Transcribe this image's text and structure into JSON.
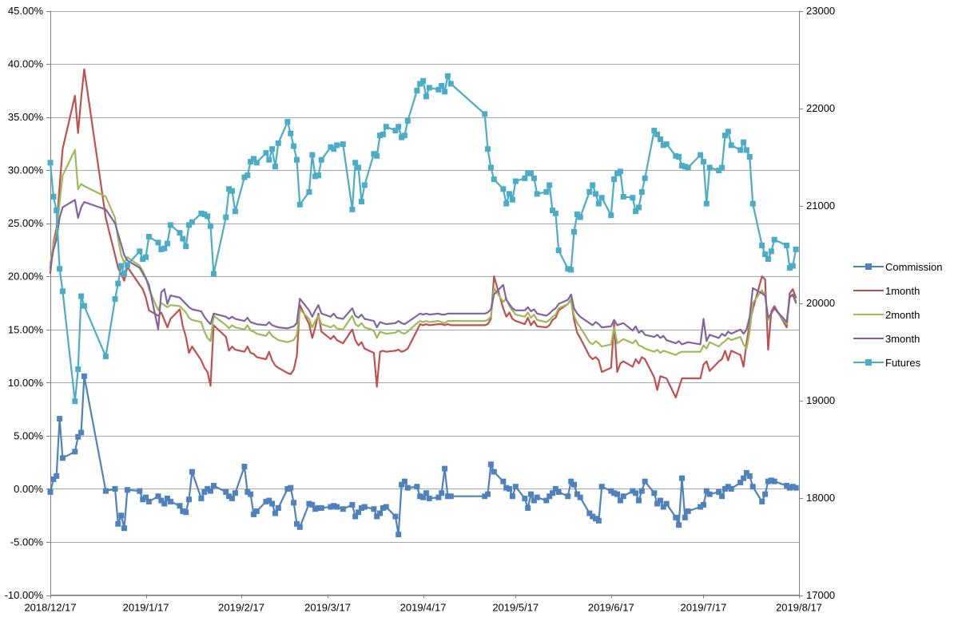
{
  "chart_data": {
    "type": "line",
    "title": "",
    "grid": "horizontal",
    "legend_position": "right",
    "background": "#ffffff",
    "gridline_color": "#a6a6a6",
    "axis_color": "#808080",
    "text_color": "#000000",
    "x_axis": {
      "kind": "date",
      "start_date": "2018/12/17",
      "span_days": 243,
      "tick_labels": [
        "2018/12/17",
        "2019/1/17",
        "2019/2/17",
        "2019/3/17",
        "2019/4/17",
        "2019/5/17",
        "2019/6/17",
        "2019/7/17",
        "2019/8/17"
      ],
      "tick_day_offsets": [
        0,
        31,
        62,
        90,
        121,
        151,
        182,
        212,
        243
      ]
    },
    "y_axis_left": {
      "min": -10,
      "max": 45,
      "step": 5,
      "format": "percent",
      "tick_labels": [
        "45.00%",
        "40.00%",
        "35.00%",
        "30.00%",
        "25.00%",
        "20.00%",
        "15.00%",
        "10.00%",
        "5.00%",
        "0.00%",
        "-5.00%",
        "-10.00%"
      ]
    },
    "y_axis_right": {
      "min": 17000,
      "max": 23000,
      "step": 1000,
      "tick_labels": [
        "23000",
        "22000",
        "21000",
        "20000",
        "19000",
        "18000",
        "17000"
      ]
    },
    "trading_day_offsets": [
      0,
      1,
      2,
      3,
      4,
      8,
      9,
      10,
      11,
      18,
      21,
      22,
      23,
      24,
      25,
      29,
      30,
      31,
      32,
      35,
      36,
      37,
      38,
      39,
      42,
      43,
      44,
      45,
      46,
      49,
      50,
      51,
      52,
      53,
      57,
      58,
      59,
      60,
      63,
      64,
      65,
      66,
      67,
      70,
      71,
      72,
      73,
      74,
      77,
      78,
      79,
      80,
      81,
      84,
      85,
      86,
      87,
      88,
      91,
      92,
      93,
      95,
      98,
      99,
      100,
      101,
      102,
      105,
      106,
      107,
      108,
      109,
      112,
      113,
      114,
      115,
      116,
      119,
      120,
      121,
      122,
      123,
      126,
      127,
      128,
      129,
      130,
      141,
      142,
      143,
      144,
      147,
      148,
      149,
      150,
      151,
      154,
      155,
      156,
      157,
      158,
      161,
      162,
      163,
      164,
      165,
      168,
      169,
      170,
      171,
      172,
      175,
      176,
      177,
      178,
      179,
      182,
      183,
      184,
      185,
      186,
      189,
      190,
      191,
      192,
      193,
      196,
      197,
      198,
      199,
      200,
      203,
      204,
      205,
      206,
      207,
      211,
      212,
      213,
      214,
      217,
      218,
      219,
      220,
      221,
      224,
      225,
      226,
      227,
      228,
      231,
      232,
      233,
      234,
      235,
      239,
      240,
      241,
      242
    ],
    "series": [
      {
        "name": "Commission",
        "axis": "left",
        "color": "#4f81bd",
        "marker": "square",
        "values": [
          -0.3,
          0.9,
          1.2,
          6.6,
          2.9,
          3.5,
          4.9,
          5.3,
          10.6,
          -0.2,
          0.0,
          -3.3,
          -2.5,
          -3.7,
          -0.1,
          -0.2,
          -1.0,
          -0.8,
          -1.2,
          -0.7,
          -1.1,
          -1.4,
          -0.9,
          -1.2,
          -1.6,
          -2.1,
          -2.2,
          -1.0,
          1.6,
          -0.9,
          -0.3,
          0.0,
          -0.2,
          0.3,
          -0.3,
          -0.7,
          -0.9,
          -0.4,
          2.1,
          -0.3,
          -0.5,
          -2.4,
          -2.1,
          -1.2,
          -1.1,
          -1.4,
          -2.3,
          -1.8,
          0.0,
          0.1,
          -1.3,
          -3.3,
          -3.6,
          -1.4,
          -1.5,
          -1.9,
          -1.8,
          -1.8,
          -1.7,
          -1.6,
          -1.7,
          -1.9,
          -1.5,
          -2.6,
          -2.2,
          -1.8,
          -1.7,
          -1.9,
          -2.6,
          -2.3,
          -1.8,
          -1.7,
          -2.6,
          -4.3,
          0.4,
          0.7,
          0.1,
          0.2,
          -0.7,
          -0.8,
          -0.4,
          -0.9,
          -0.8,
          -0.4,
          1.9,
          -0.7,
          -0.7,
          -0.7,
          -0.5,
          2.3,
          1.6,
          0.7,
          0.1,
          0.0,
          -0.7,
          0.2,
          -0.9,
          -1.8,
          -0.5,
          -1.1,
          -0.8,
          -1.1,
          -0.7,
          -0.4,
          0.0,
          -0.3,
          -0.7,
          0.7,
          0.4,
          -0.5,
          -0.8,
          -2.3,
          -2.6,
          -2.8,
          -3.0,
          0.2,
          -0.2,
          -0.4,
          -0.5,
          -1.1,
          -0.7,
          -0.2,
          -0.4,
          -1.1,
          -0.2,
          0.7,
          -0.4,
          -1.4,
          -1.1,
          -1.7,
          -1.4,
          -2.7,
          -3.4,
          1.0,
          -2.7,
          -2.1,
          -1.7,
          -1.5,
          -0.2,
          -0.5,
          -0.3,
          -0.7,
          0.0,
          0.2,
          0.0,
          0.6,
          1.0,
          1.5,
          1.2,
          0.2,
          -1.2,
          -0.5,
          0.7,
          0.8,
          0.7,
          0.3,
          0.1,
          0.2,
          0.1
        ]
      },
      {
        "name": "1month",
        "axis": "left",
        "color": "#c0504d",
        "marker": "none",
        "values": [
          20.3,
          23.2,
          24.5,
          28.5,
          32.0,
          37.0,
          33.5,
          36.8,
          39.5,
          25.5,
          22.0,
          20.8,
          20.2,
          19.6,
          20.9,
          19.2,
          18.8,
          18.0,
          16.8,
          16.3,
          16.6,
          15.9,
          15.2,
          16.0,
          16.9,
          15.3,
          14.3,
          12.8,
          13.4,
          12.1,
          11.4,
          11.0,
          9.7,
          15.4,
          14.3,
          13.0,
          13.4,
          13.1,
          12.9,
          13.4,
          12.8,
          12.7,
          12.4,
          12.2,
          12.9,
          12.1,
          11.6,
          11.4,
          10.9,
          10.8,
          11.2,
          12.5,
          17.3,
          15.5,
          14.2,
          15.2,
          16.5,
          14.8,
          14.1,
          14.4,
          14.0,
          13.7,
          15.0,
          14.0,
          13.5,
          13.8,
          13.2,
          12.8,
          9.6,
          12.9,
          13.0,
          12.9,
          13.0,
          13.1,
          12.9,
          13.0,
          13.2,
          14.9,
          15.5,
          15.4,
          15.5,
          15.4,
          15.5,
          15.5,
          15.4,
          15.5,
          15.4,
          15.4,
          15.5,
          16.0,
          20.0,
          17.0,
          16.2,
          16.6,
          16.0,
          15.8,
          15.5,
          16.1,
          15.4,
          15.8,
          15.3,
          15.2,
          15.4,
          15.9,
          16.1,
          16.8,
          17.4,
          17.8,
          15.9,
          14.7,
          14.2,
          12.5,
          12.2,
          12.4,
          12.1,
          11.0,
          11.4,
          15.6,
          11.0,
          11.8,
          12.0,
          11.5,
          12.2,
          11.8,
          12.4,
          12.2,
          10.5,
          9.3,
          10.6,
          10.5,
          10.4,
          8.6,
          9.5,
          10.4,
          10.4,
          10.4,
          10.4,
          11.7,
          12.0,
          11.1,
          12.0,
          12.2,
          13.0,
          12.1,
          13.0,
          12.6,
          11.5,
          13.8,
          15.5,
          16.9,
          20.0,
          19.7,
          13.1,
          16.7,
          17.2,
          15.2,
          18.4,
          18.8,
          18.0
        ]
      },
      {
        "name": "2month",
        "axis": "left",
        "color": "#9bbb59",
        "marker": "none",
        "values": [
          21.2,
          23.0,
          24.0,
          27.0,
          29.5,
          31.9,
          28.2,
          28.7,
          28.5,
          27.5,
          25.5,
          23.5,
          22.0,
          21.3,
          21.8,
          21.0,
          20.5,
          19.9,
          18.8,
          16.8,
          17.5,
          17.3,
          17.1,
          17.3,
          17.2,
          16.9,
          16.6,
          16.1,
          15.9,
          15.7,
          14.8,
          14.2,
          13.9,
          16.3,
          15.4,
          15.1,
          15.4,
          15.2,
          15.0,
          15.4,
          14.9,
          14.8,
          14.6,
          14.4,
          14.8,
          14.4,
          14.2,
          14.0,
          13.8,
          13.9,
          14.0,
          14.5,
          16.9,
          16.0,
          15.2,
          15.8,
          16.3,
          15.5,
          15.2,
          15.4,
          15.1,
          15.0,
          16.3,
          15.5,
          15.3,
          15.6,
          15.2,
          14.9,
          14.2,
          14.8,
          14.7,
          14.6,
          14.7,
          14.9,
          14.7,
          14.6,
          14.8,
          15.6,
          15.8,
          15.7,
          15.8,
          15.7,
          15.8,
          15.7,
          15.6,
          15.8,
          15.8,
          15.8,
          15.9,
          16.2,
          18.9,
          17.6,
          17.9,
          17.2,
          16.8,
          16.4,
          16.2,
          16.6,
          16.1,
          16.4,
          15.9,
          15.7,
          15.9,
          16.2,
          16.4,
          17.0,
          17.4,
          17.9,
          16.3,
          15.6,
          15.2,
          13.8,
          13.6,
          13.9,
          13.7,
          13.4,
          13.6,
          15.2,
          13.7,
          13.9,
          14.1,
          13.7,
          14.0,
          13.5,
          13.4,
          13.2,
          12.9,
          13.1,
          12.8,
          13.0,
          12.9,
          12.6,
          12.8,
          12.9,
          12.9,
          12.9,
          12.9,
          13.5,
          13.2,
          13.8,
          13.4,
          13.7,
          13.9,
          14.2,
          14.0,
          14.3,
          13.6,
          13.2,
          14.8,
          17.5,
          18.7,
          18.3,
          15.9,
          16.6,
          17.0,
          15.5,
          18.0,
          18.2,
          17.7
        ]
      },
      {
        "name": "3month",
        "axis": "left",
        "color": "#8064a2",
        "marker": "none",
        "values": [
          20.8,
          22.5,
          23.5,
          25.5,
          26.5,
          27.2,
          25.5,
          26.5,
          27.0,
          26.3,
          25.0,
          24.0,
          23.0,
          22.0,
          21.5,
          20.8,
          20.3,
          19.8,
          19.2,
          15.0,
          18.5,
          18.8,
          17.4,
          18.2,
          18.0,
          17.7,
          17.4,
          17.1,
          16.9,
          16.7,
          16.2,
          15.8,
          15.5,
          16.5,
          16.2,
          16.0,
          16.2,
          16.0,
          15.8,
          16.1,
          15.7,
          15.6,
          15.5,
          15.4,
          15.7,
          15.4,
          15.3,
          15.2,
          15.1,
          15.2,
          15.3,
          15.6,
          17.9,
          16.8,
          16.2,
          16.8,
          17.3,
          16.5,
          16.2,
          16.5,
          16.1,
          16.0,
          17.0,
          16.3,
          16.1,
          16.4,
          16.0,
          15.8,
          15.2,
          15.7,
          15.6,
          15.5,
          15.6,
          15.8,
          15.6,
          15.5,
          15.7,
          16.3,
          16.5,
          16.4,
          16.5,
          16.4,
          16.5,
          16.4,
          16.4,
          16.5,
          16.5,
          16.5,
          16.6,
          16.9,
          18.3,
          19.2,
          17.8,
          17.4,
          17.0,
          16.8,
          16.8,
          17.1,
          16.7,
          16.9,
          16.5,
          16.3,
          16.5,
          16.8,
          17.0,
          17.4,
          17.8,
          18.3,
          17.0,
          16.5,
          16.2,
          15.6,
          15.4,
          15.7,
          15.5,
          15.2,
          15.3,
          15.9,
          15.4,
          15.5,
          15.6,
          14.9,
          15.3,
          14.7,
          14.9,
          14.5,
          14.3,
          14.5,
          14.2,
          14.4,
          14.0,
          13.7,
          13.9,
          13.6,
          13.7,
          13.8,
          13.6,
          16.0,
          13.9,
          14.5,
          14.2,
          14.6,
          14.4,
          14.8,
          14.6,
          15.0,
          14.6,
          15.0,
          16.2,
          18.9,
          18.4,
          18.2,
          16.1,
          16.5,
          17.0,
          15.7,
          18.1,
          18.3,
          17.5
        ]
      },
      {
        "name": "Futures",
        "axis": "right",
        "color": "#4bacc6",
        "marker": "square",
        "values": [
          21440,
          21090,
          20950,
          20350,
          20120,
          18990,
          19320,
          20070,
          19970,
          19450,
          20040,
          20200,
          20380,
          20300,
          20390,
          20530,
          20450,
          20470,
          20680,
          20620,
          20550,
          20560,
          20610,
          20800,
          20720,
          20660,
          20580,
          20800,
          20830,
          20920,
          20910,
          20890,
          20790,
          20300,
          20880,
          21170,
          21150,
          20940,
          21290,
          21310,
          21450,
          21480,
          21440,
          21540,
          21470,
          21580,
          21400,
          21640,
          21860,
          21740,
          21610,
          21470,
          21010,
          21140,
          21520,
          21300,
          21310,
          21470,
          21600,
          21580,
          21620,
          21630,
          20960,
          21440,
          21390,
          21040,
          21210,
          21530,
          21510,
          21720,
          21730,
          21810,
          21770,
          21810,
          21700,
          21720,
          21870,
          22180,
          22250,
          22280,
          22120,
          22210,
          22190,
          22230,
          22170,
          22330,
          22250,
          21940,
          21580,
          21390,
          21270,
          21170,
          21020,
          21120,
          21060,
          21250,
          21280,
          21330,
          21330,
          21280,
          21120,
          21140,
          21210,
          20950,
          20920,
          20540,
          20350,
          20340,
          20730,
          20910,
          20880,
          21140,
          21210,
          21120,
          21020,
          21080,
          20900,
          21270,
          21330,
          21350,
          21090,
          21080,
          20940,
          20980,
          21140,
          21280,
          21770,
          21730,
          21680,
          21620,
          21630,
          21510,
          21500,
          21410,
          21400,
          21390,
          21520,
          21450,
          21020,
          21390,
          21360,
          21390,
          21720,
          21760,
          21620,
          21570,
          21650,
          21570,
          21500,
          21020,
          20590,
          20500,
          20450,
          20530,
          20650,
          20590,
          20360,
          20380,
          20550
        ]
      }
    ]
  }
}
